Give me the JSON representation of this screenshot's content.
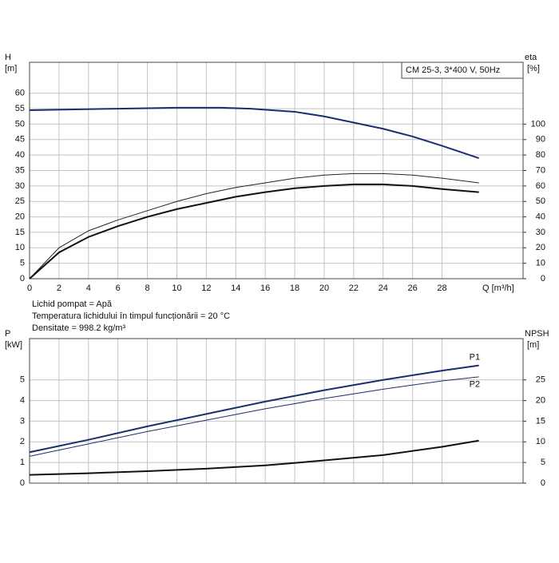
{
  "chart_data": [
    {
      "type": "line",
      "title": "CM 25-3, 3*400 V, 50Hz",
      "ylabel": "H",
      "yunit": "[m]",
      "y2label": "eta",
      "y2unit": "[%]",
      "xlabel": "Q [m³/h]",
      "xlim": [
        0,
        33.5
      ],
      "xticks": [
        0,
        2,
        4,
        6,
        8,
        10,
        12,
        14,
        16,
        18,
        20,
        22,
        24,
        26,
        28
      ],
      "ylim": [
        0,
        70
      ],
      "yticks": [
        0,
        5,
        10,
        15,
        20,
        25,
        30,
        35,
        40,
        45,
        50,
        55,
        60
      ],
      "y2lim": [
        0,
        140
      ],
      "y2ticks": [
        0,
        10,
        20,
        30,
        40,
        50,
        60,
        70,
        80,
        90,
        100
      ],
      "grid": true,
      "series": [
        {
          "color": "#1a2f6e",
          "width": 2,
          "x": [
            0,
            6,
            10,
            13,
            15,
            18,
            20,
            22,
            24,
            26,
            28,
            30.5
          ],
          "values": [
            54.5,
            55,
            55.3,
            55.3,
            55,
            54,
            52.5,
            50.5,
            48.5,
            46,
            43,
            39
          ]
        },
        {
          "color": "#222222",
          "width": 1,
          "axis": "y2",
          "x": [
            0,
            2,
            4,
            6,
            8,
            10,
            12,
            14,
            16,
            18,
            20,
            22,
            24,
            26,
            28,
            30.5
          ],
          "values": [
            0,
            20,
            31,
            38,
            44,
            50,
            55,
            59,
            62,
            65,
            67,
            68,
            68,
            67,
            65,
            62
          ]
        },
        {
          "color": "#111111",
          "width": 2,
          "axis": "y2",
          "x": [
            0,
            2,
            4,
            6,
            8,
            10,
            12,
            14,
            16,
            18,
            20,
            22,
            24,
            26,
            28,
            30.5
          ],
          "values": [
            0,
            17,
            27,
            34,
            40,
            45,
            49,
            53,
            56,
            58.5,
            60,
            61,
            61,
            60,
            58,
            56
          ]
        }
      ],
      "notes": [
        "Lichid pompat = Apă",
        "Temperatura lichidului în timpul funcționării = 20 °C",
        "Densitate = 998.2 kg/m³"
      ]
    },
    {
      "type": "line",
      "ylabel": "P",
      "yunit": "[kW]",
      "y2label": "NPSH",
      "y2unit": "[m]",
      "xlim": [
        0,
        33.5
      ],
      "ylim": [
        0,
        7
      ],
      "yticks": [
        0,
        1,
        2,
        3,
        4,
        5
      ],
      "y2lim": [
        0,
        35
      ],
      "y2ticks": [
        0,
        5,
        10,
        15,
        20,
        25
      ],
      "grid": true,
      "series": [
        {
          "name": "P1",
          "color": "#1a2f6e",
          "width": 2,
          "x": [
            0,
            4,
            8,
            12,
            16,
            20,
            24,
            28,
            30.5
          ],
          "values": [
            1.5,
            2.1,
            2.75,
            3.35,
            3.95,
            4.5,
            5.0,
            5.45,
            5.7
          ]
        },
        {
          "name": "P2",
          "color": "#1a2f6e",
          "width": 1,
          "x": [
            0,
            4,
            8,
            12,
            16,
            20,
            24,
            28,
            30.5
          ],
          "values": [
            1.3,
            1.9,
            2.5,
            3.05,
            3.6,
            4.1,
            4.55,
            4.95,
            5.15
          ]
        },
        {
          "color": "#111111",
          "width": 2,
          "axis": "y2",
          "x": [
            0,
            4,
            8,
            12,
            16,
            20,
            24,
            28,
            30.5
          ],
          "values": [
            2.0,
            2.4,
            2.9,
            3.5,
            4.3,
            5.5,
            6.8,
            8.8,
            10.3
          ]
        }
      ]
    }
  ]
}
